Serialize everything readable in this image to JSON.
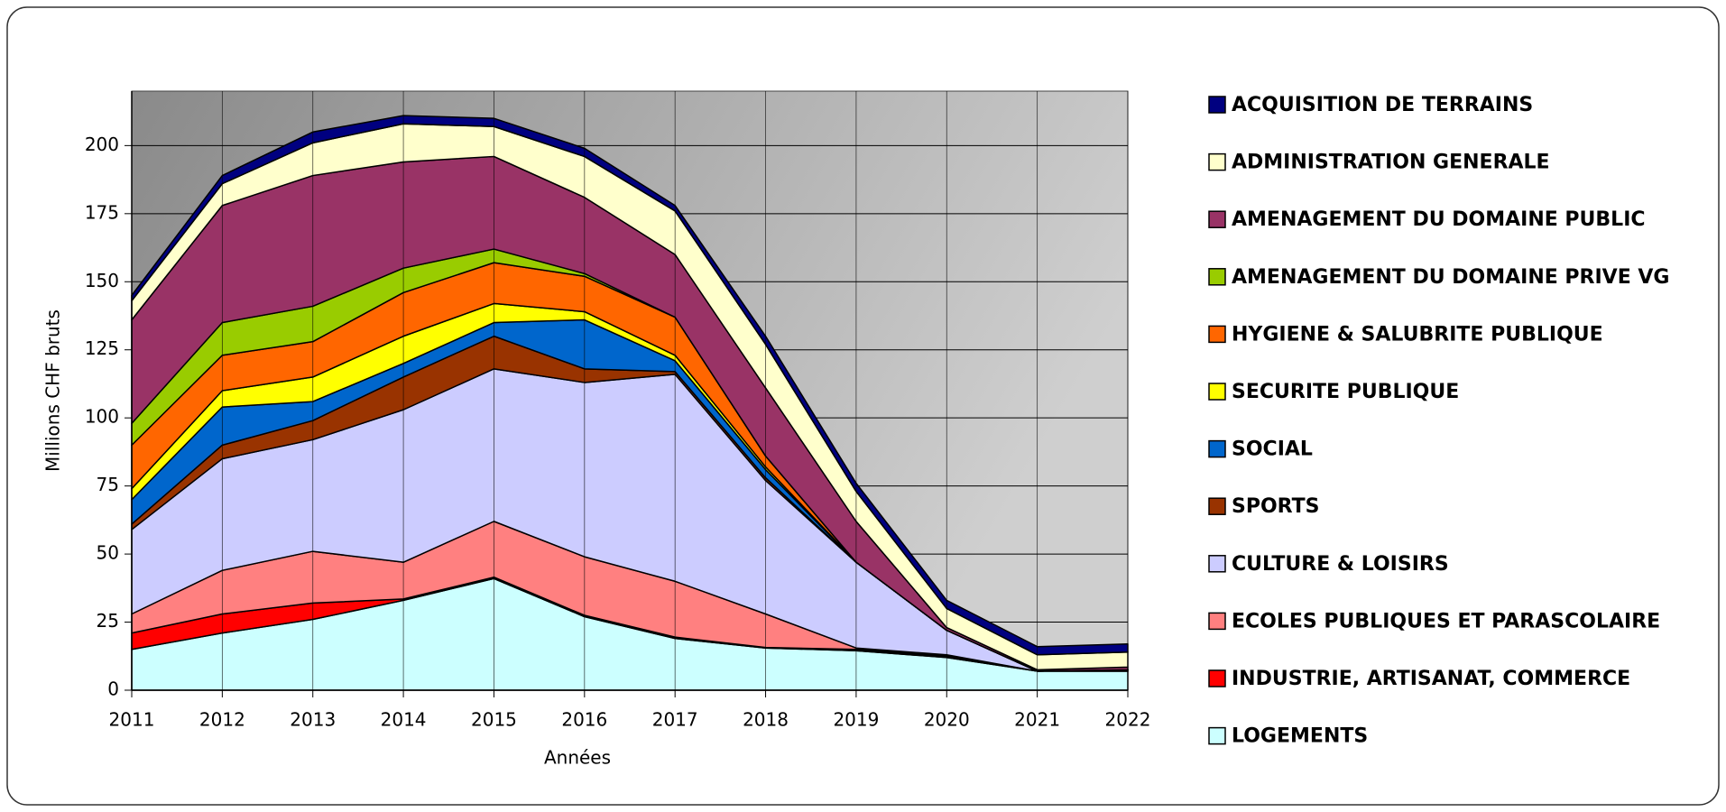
{
  "chart_data": {
    "type": "stacked_area",
    "x_label": "Années",
    "y_label": "Millions CHF bruts",
    "x": [
      2011,
      2012,
      2013,
      2014,
      2015,
      2016,
      2017,
      2018,
      2019,
      2020,
      2021,
      2022
    ],
    "xlim": [
      2011,
      2022
    ],
    "xticks": [
      2011,
      2012,
      2013,
      2014,
      2015,
      2016,
      2017,
      2018,
      2019,
      2020,
      2021,
      2022
    ],
    "ylim": [
      0,
      220
    ],
    "yticks": [
      0,
      25,
      50,
      75,
      100,
      125,
      150,
      175,
      200
    ],
    "grid": true,
    "legend": "right",
    "series": [
      {
        "name": "LOGEMENTS",
        "color": "#ccffff",
        "values": [
          15,
          21,
          26,
          33,
          41,
          27,
          19,
          15.5,
          14.5,
          12,
          7,
          7
        ]
      },
      {
        "name": "INDUSTRIE, ARTISANAT, COMMERCE",
        "color": "#ff0000",
        "values": [
          6,
          7,
          6,
          0.5,
          0.5,
          0.5,
          0.5,
          0.2,
          0.5,
          0.5,
          0,
          0
        ]
      },
      {
        "name": "ECOLES PUBLIQUES ET PARASCOLAIRE",
        "color": "#ff8080",
        "values": [
          7,
          16,
          19,
          13.5,
          20.5,
          21.5,
          20.5,
          12.3,
          0.5,
          0.5,
          0,
          0
        ]
      },
      {
        "name": "CULTURE & LOISIRS",
        "color": "#ccccff",
        "values": [
          31,
          41,
          41,
          56,
          56,
          64,
          76,
          49,
          31.5,
          9,
          0,
          0.5
        ]
      },
      {
        "name": "SPORTS",
        "color": "#993300",
        "values": [
          2,
          5,
          7,
          12,
          12,
          5,
          1,
          1,
          0,
          0,
          0,
          0
        ]
      },
      {
        "name": "SOCIAL",
        "color": "#0066cc",
        "values": [
          9,
          14,
          7,
          5,
          5,
          18,
          4,
          3,
          0,
          0,
          0,
          0
        ]
      },
      {
        "name": "SECURITE PUBLIQUE",
        "color": "#ffff00",
        "values": [
          4,
          6,
          9,
          10,
          7,
          3,
          2,
          1,
          0,
          0,
          0,
          0
        ]
      },
      {
        "name": "HYGIENE & SALUBRITE PUBLIQUE",
        "color": "#ff6600",
        "values": [
          16,
          13,
          13,
          16,
          15,
          13,
          14,
          4,
          0,
          0,
          0,
          0
        ]
      },
      {
        "name": "AMENAGEMENT DU DOMAINE PRIVE VG",
        "color": "#99cc00",
        "values": [
          8,
          12,
          13,
          9,
          5,
          1,
          0,
          0,
          0,
          0,
          0,
          0
        ]
      },
      {
        "name": "AMENAGEMENT DU DOMAINE PUBLIC",
        "color": "#993366",
        "values": [
          38,
          43,
          48,
          39,
          34,
          28,
          23,
          25,
          15,
          1,
          0.5,
          1
        ]
      },
      {
        "name": "ADMINISTRATION GENERALE",
        "color": "#ffffcc",
        "values": [
          7,
          8,
          12,
          14,
          11,
          15,
          16,
          16,
          11,
          7,
          5.5,
          5.5
        ]
      },
      {
        "name": "ACQUISITION DE TERRAINS",
        "color": "#000080",
        "values": [
          2,
          3,
          4,
          3,
          3,
          3,
          2,
          3,
          3,
          3,
          3,
          3
        ]
      }
    ]
  }
}
